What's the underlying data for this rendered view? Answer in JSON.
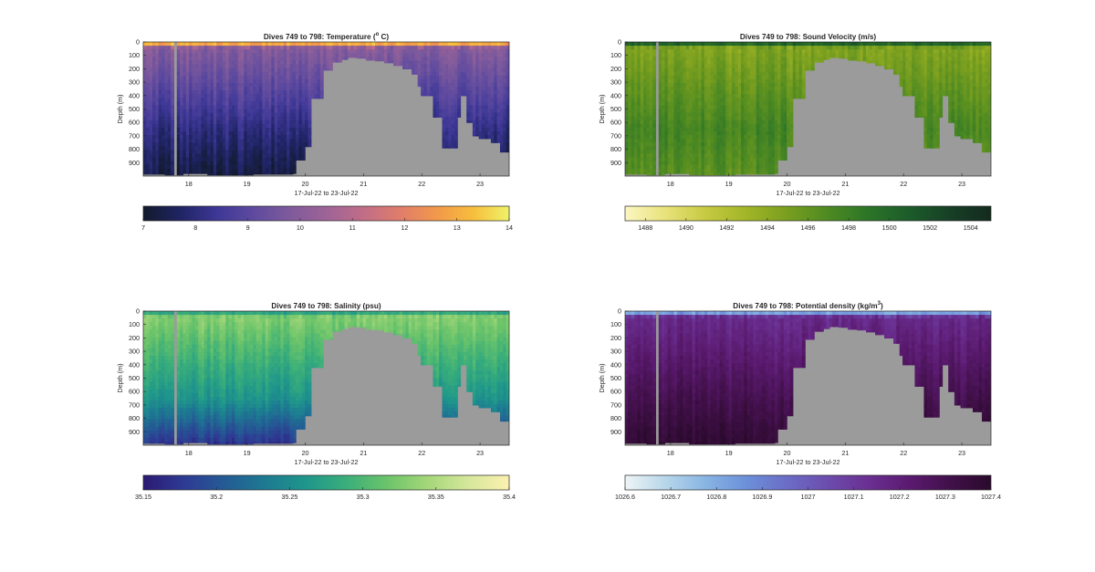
{
  "panels_common": {
    "xlabel": "17-Jul-22 to 23-Jul-22",
    "ylabel": "Depth (m)",
    "yticks": [
      0,
      100,
      200,
      300,
      400,
      500,
      600,
      700,
      800,
      900
    ],
    "ylim": [
      0,
      1000
    ],
    "xticks": [
      18,
      19,
      20,
      21,
      22,
      23
    ],
    "xlim": [
      17.22,
      23.5
    ],
    "no_data_color": "#9b9b9b"
  },
  "chart_data": [
    {
      "type": "heatmap",
      "title": "Dives 749 to 798: Temperature (",
      "title_sup": "o",
      "title_end": " C)",
      "colormap": [
        "#121a2b",
        "#1f2463",
        "#3d3796",
        "#5e4a9f",
        "#7e5a9c",
        "#9e6397",
        "#c06d87",
        "#df7c6b",
        "#f1984b",
        "#f7bd3c",
        "#eff36a"
      ],
      "clim": [
        7,
        14
      ],
      "cbar_ticks": [
        "7",
        "8",
        "9",
        "10",
        "11",
        "12",
        "13",
        "14"
      ],
      "cbar_tick_values": [
        7,
        8,
        9,
        10,
        11,
        12,
        13,
        14
      ],
      "surface_value": 13.6,
      "surface_depth": 40,
      "upper_value": 10.0,
      "deep_value": 8.1,
      "bottom_value": 7.3
    },
    {
      "type": "heatmap",
      "title": "Dives 749 to 798: Sound Velocity (m/s)",
      "title_sup": "",
      "title_end": "",
      "colormap": [
        "#fbf6c2",
        "#e8e27a",
        "#c6c940",
        "#a1b527",
        "#789e1f",
        "#4e8a22",
        "#2b7428",
        "#1c5b2a",
        "#173f26",
        "#132a1e"
      ],
      "clim": [
        1487,
        1505
      ],
      "cbar_ticks": [
        "1488",
        "1490",
        "1492",
        "1494",
        "1496",
        "1498",
        "1500",
        "1502",
        "1504"
      ],
      "cbar_tick_values": [
        1488,
        1490,
        1492,
        1494,
        1496,
        1498,
        1500,
        1502,
        1504
      ],
      "surface_value": 1501.5,
      "surface_depth": 40,
      "upper_value": 1494.5,
      "deep_value": 1497.5,
      "bottom_value": 1496.5
    },
    {
      "type": "heatmap",
      "title": "Dives 749 to 798: Salinity (psu)",
      "title_sup": "",
      "title_end": "",
      "colormap": [
        "#2b1a73",
        "#2e3a93",
        "#245b94",
        "#1d7a92",
        "#1f968b",
        "#3aae7a",
        "#6cc46a",
        "#a5d77a",
        "#d6e79b",
        "#fdf0b0"
      ],
      "clim": [
        35.15,
        35.4
      ],
      "cbar_ticks": [
        "35.15",
        "35.2",
        "35.25",
        "35.3",
        "35.35",
        "35.4"
      ],
      "cbar_tick_values": [
        35.15,
        35.2,
        35.25,
        35.3,
        35.35,
        35.4
      ],
      "surface_value": 35.27,
      "surface_depth": 40,
      "upper_value": 35.33,
      "deep_value": 35.26,
      "bottom_value": 35.17
    },
    {
      "type": "heatmap",
      "title": "Dives 749 to 798: Potential density (kg/m",
      "title_sup": "3",
      "title_end": ")",
      "colormap": [
        "#eef4f6",
        "#b7d6ea",
        "#87b4e3",
        "#6c8fd9",
        "#6b6cc6",
        "#6c4cac",
        "#6a2f91",
        "#5a1a6f",
        "#411049",
        "#2a0a2c"
      ],
      "clim": [
        1026.6,
        1027.4
      ],
      "cbar_ticks": [
        "1026.6",
        "1026.7",
        "1026.8",
        "1026.9",
        "1027",
        "1027.1",
        "1027.2",
        "1027.3",
        "1027.4"
      ],
      "cbar_tick_values": [
        1026.6,
        1026.7,
        1026.8,
        1026.9,
        1027,
        1027.1,
        1027.2,
        1027.3,
        1027.4
      ],
      "surface_value": 1026.75,
      "surface_depth": 40,
      "upper_value": 1027.15,
      "deep_value": 1027.3,
      "bottom_value": 1027.38
    }
  ],
  "bathymetry": {
    "x": [
      17.22,
      17.6,
      17.9,
      18.3,
      18.7,
      19.1,
      19.5,
      19.8,
      19.86,
      20.0,
      20.12,
      20.3,
      20.45,
      20.6,
      20.75,
      20.9,
      21.05,
      21.2,
      21.35,
      21.5,
      21.65,
      21.8,
      21.95,
      22.0,
      22.2,
      22.35,
      22.5,
      22.6,
      22.65,
      22.75,
      22.85,
      23.0,
      23.2,
      23.35,
      23.5
    ],
    "bottom_depth": [
      985,
      990,
      980,
      990,
      990,
      985,
      985,
      980,
      880,
      780,
      420,
      210,
      150,
      130,
      115,
      120,
      135,
      140,
      155,
      175,
      200,
      240,
      330,
      400,
      560,
      790,
      790,
      560,
      400,
      600,
      700,
      720,
      750,
      820,
      820
    ]
  },
  "gaps": [
    {
      "x0": 17.72,
      "x1": 17.82
    }
  ]
}
